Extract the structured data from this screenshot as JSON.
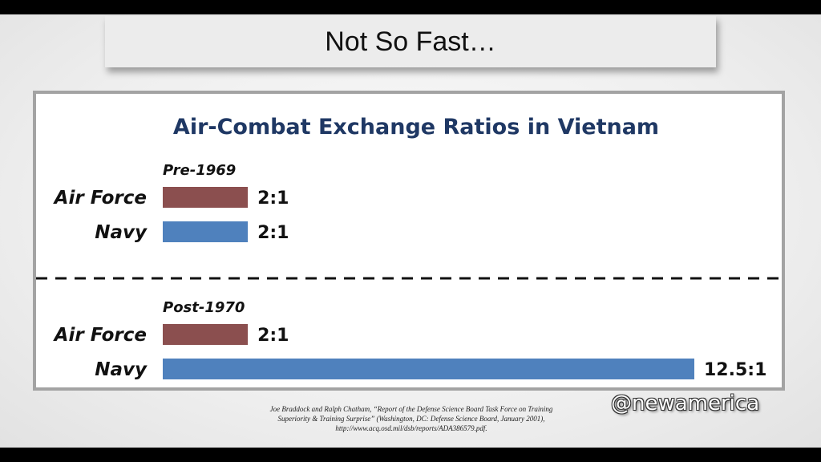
{
  "slide": {
    "title": "Not So Fast…",
    "watermark": "@newamerica",
    "citation": [
      "Joe Braddock and Ralph Chatham, “Report of the Defense Science Board Task Force on Training",
      "Superiority & Training Surprise” (Washington, DC: Defense Science Board, January 2001),",
      "http://www.acq.osd.mil/dsb/reports/ADA386579.pdf."
    ]
  },
  "chart_data": {
    "type": "bar",
    "orientation": "horizontal",
    "title": "Air-Combat Exchange Ratios in Vietnam",
    "colors": {
      "Air Force": "#8b4f4f",
      "Navy": "#4f81bd",
      "title": "#1f3864"
    },
    "groups": [
      {
        "label": "Pre-1969",
        "bars": [
          {
            "category": "Air Force",
            "value": 2,
            "label": "2:1"
          },
          {
            "category": "Navy",
            "value": 2,
            "label": "2:1"
          }
        ]
      },
      {
        "label": "Post-1970",
        "bars": [
          {
            "category": "Air Force",
            "value": 2,
            "label": "2:1"
          },
          {
            "category": "Navy",
            "value": 12.5,
            "label": "12.5:1"
          }
        ]
      }
    ],
    "xlim": [
      0,
      12.5
    ],
    "grid": false
  }
}
